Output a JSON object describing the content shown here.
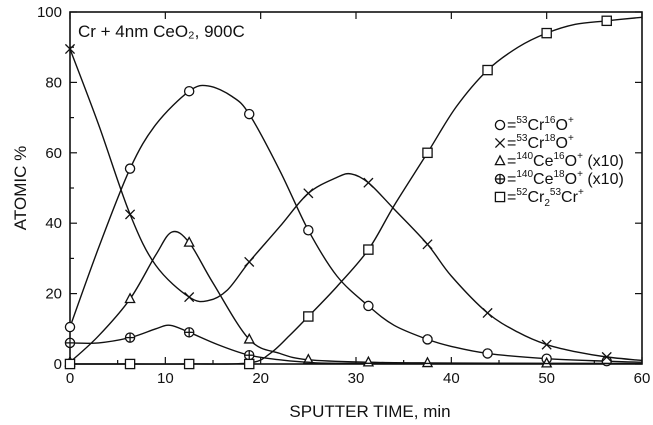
{
  "chart_data": {
    "type": "line",
    "title": "Cr + 4nm CeO₂, 900C",
    "xlabel": "SPUTTER TIME, min",
    "ylabel": "ATOMIC %",
    "xlim": [
      0,
      60
    ],
    "ylim": [
      0,
      100
    ],
    "xticks": [
      0,
      10,
      20,
      30,
      40,
      50,
      60
    ],
    "yticks": [
      0,
      20,
      40,
      60,
      80,
      100
    ],
    "grid": false,
    "legend_position": "right",
    "series": [
      {
        "name": " = ⁵³Cr¹⁶O⁺",
        "legend_parts": {
          "eq": "=",
          "iso1": "53",
          "el1": "Cr",
          "iso2": "16",
          "el2": "O",
          "charge": "+",
          "suffix": ""
        },
        "marker": "circle",
        "points": [
          [
            0,
            10.5
          ],
          [
            6.3,
            55.5
          ],
          [
            12.5,
            77.5
          ],
          [
            18.8,
            71
          ],
          [
            25,
            38
          ],
          [
            31.3,
            16.5
          ],
          [
            37.5,
            7
          ],
          [
            43.8,
            3
          ],
          [
            50,
            1.5
          ],
          [
            56.3,
            0.8
          ]
        ],
        "curve": [
          [
            0,
            10.5
          ],
          [
            3,
            33
          ],
          [
            6.3,
            55.5
          ],
          [
            9,
            68
          ],
          [
            12.5,
            77.5
          ],
          [
            14.5,
            79
          ],
          [
            17,
            76
          ],
          [
            18.8,
            71
          ],
          [
            22,
            55
          ],
          [
            25,
            38
          ],
          [
            28,
            25
          ],
          [
            31.3,
            16.5
          ],
          [
            34,
            11
          ],
          [
            37.5,
            7
          ],
          [
            40,
            5
          ],
          [
            43.8,
            3
          ],
          [
            50,
            1.5
          ],
          [
            56.3,
            0.8
          ],
          [
            60,
            0.5
          ]
        ]
      },
      {
        "name": "=⁵³Cr¹⁸O⁺",
        "legend_parts": {
          "eq": "=",
          "iso1": "53",
          "el1": "Cr",
          "iso2": "18",
          "el2": "O",
          "charge": "+",
          "suffix": ""
        },
        "marker": "cross",
        "points": [
          [
            0,
            89.5
          ],
          [
            6.3,
            42.5
          ],
          [
            12.5,
            19
          ],
          [
            18.8,
            29
          ],
          [
            25,
            48.5
          ],
          [
            31.3,
            51.5
          ],
          [
            37.5,
            34
          ],
          [
            43.8,
            14.5
          ],
          [
            50,
            5.5
          ],
          [
            56.3,
            2
          ]
        ],
        "curve": [
          [
            0,
            89.5
          ],
          [
            3,
            68
          ],
          [
            6.3,
            42.5
          ],
          [
            9,
            28
          ],
          [
            12.5,
            19
          ],
          [
            14.5,
            18
          ],
          [
            16.5,
            21
          ],
          [
            18.8,
            29
          ],
          [
            22,
            39
          ],
          [
            25,
            48.5
          ],
          [
            28,
            53
          ],
          [
            29.5,
            54
          ],
          [
            31.3,
            51.5
          ],
          [
            34,
            44
          ],
          [
            37.5,
            34
          ],
          [
            40,
            25
          ],
          [
            43.8,
            14.5
          ],
          [
            47,
            9
          ],
          [
            50,
            5.5
          ],
          [
            53,
            3.5
          ],
          [
            56.3,
            2
          ],
          [
            60,
            1
          ]
        ]
      },
      {
        "name": "=¹⁴⁰Ce¹⁶O⁺ (x10)",
        "legend_parts": {
          "eq": "=",
          "iso1": "140",
          "el1": "Ce",
          "iso2": "16",
          "el2": "O",
          "charge": "+",
          "suffix": " (x10)"
        },
        "marker": "triangle",
        "points": [
          [
            0,
            0.5
          ],
          [
            6.3,
            18.5
          ],
          [
            12.5,
            34.5
          ],
          [
            18.8,
            7
          ],
          [
            25,
            1.2
          ],
          [
            31.3,
            0.5
          ],
          [
            37.5,
            0.3
          ],
          [
            50,
            0.2
          ]
        ],
        "curve": [
          [
            0,
            0.5
          ],
          [
            3,
            8
          ],
          [
            6.3,
            18.5
          ],
          [
            9,
            31
          ],
          [
            10.7,
            37.5
          ],
          [
            12.5,
            34.5
          ],
          [
            15,
            23
          ],
          [
            18.8,
            7
          ],
          [
            22,
            3
          ],
          [
            25,
            1.2
          ],
          [
            31.3,
            0.5
          ],
          [
            37.5,
            0.3
          ],
          [
            50,
            0.2
          ],
          [
            60,
            0.1
          ]
        ]
      },
      {
        "name": "=¹⁴⁰Ce¹⁸O⁺ (x10)",
        "legend_parts": {
          "eq": "=",
          "iso1": "140",
          "el1": "Ce",
          "iso2": "18",
          "el2": "O",
          "charge": "+",
          "suffix": " (x10)"
        },
        "marker": "circle-plus",
        "points": [
          [
            0,
            6
          ],
          [
            6.3,
            7.5
          ],
          [
            12.5,
            9
          ],
          [
            18.8,
            2.5
          ]
        ],
        "curve": [
          [
            0,
            6
          ],
          [
            3,
            6
          ],
          [
            6.3,
            7.5
          ],
          [
            9,
            10
          ],
          [
            10.5,
            11
          ],
          [
            12.5,
            9
          ],
          [
            15.5,
            5.5
          ],
          [
            18.8,
            2.5
          ],
          [
            22,
            1.2
          ],
          [
            25,
            0.5
          ],
          [
            30,
            0.2
          ],
          [
            60,
            0.1
          ]
        ]
      },
      {
        "name": "=⁵²Cr₂⁵³Cr⁺",
        "legend_parts": {
          "eq": "=",
          "iso1": "52",
          "el1": "Cr",
          "sub": "2",
          "iso2": "53",
          "el2": "Cr",
          "charge": "+",
          "suffix": ""
        },
        "marker": "square",
        "points": [
          [
            0,
            0
          ],
          [
            6.3,
            0
          ],
          [
            12.5,
            0
          ],
          [
            18.8,
            0
          ],
          [
            25,
            13.5
          ],
          [
            31.3,
            32.5
          ],
          [
            37.5,
            60
          ],
          [
            43.8,
            83.5
          ],
          [
            50,
            94
          ],
          [
            56.3,
            97.5
          ]
        ],
        "curve": [
          [
            0,
            0
          ],
          [
            6.3,
            0
          ],
          [
            12.5,
            0
          ],
          [
            18.8,
            0.3
          ],
          [
            21,
            3
          ],
          [
            23,
            8
          ],
          [
            25,
            13.5
          ],
          [
            28,
            22
          ],
          [
            31.3,
            32.5
          ],
          [
            34,
            45
          ],
          [
            37.5,
            60
          ],
          [
            40.5,
            73
          ],
          [
            43.8,
            83.5
          ],
          [
            47,
            90
          ],
          [
            50,
            94
          ],
          [
            53,
            96.5
          ],
          [
            56.3,
            97.5
          ],
          [
            60,
            98.5
          ]
        ]
      }
    ]
  }
}
